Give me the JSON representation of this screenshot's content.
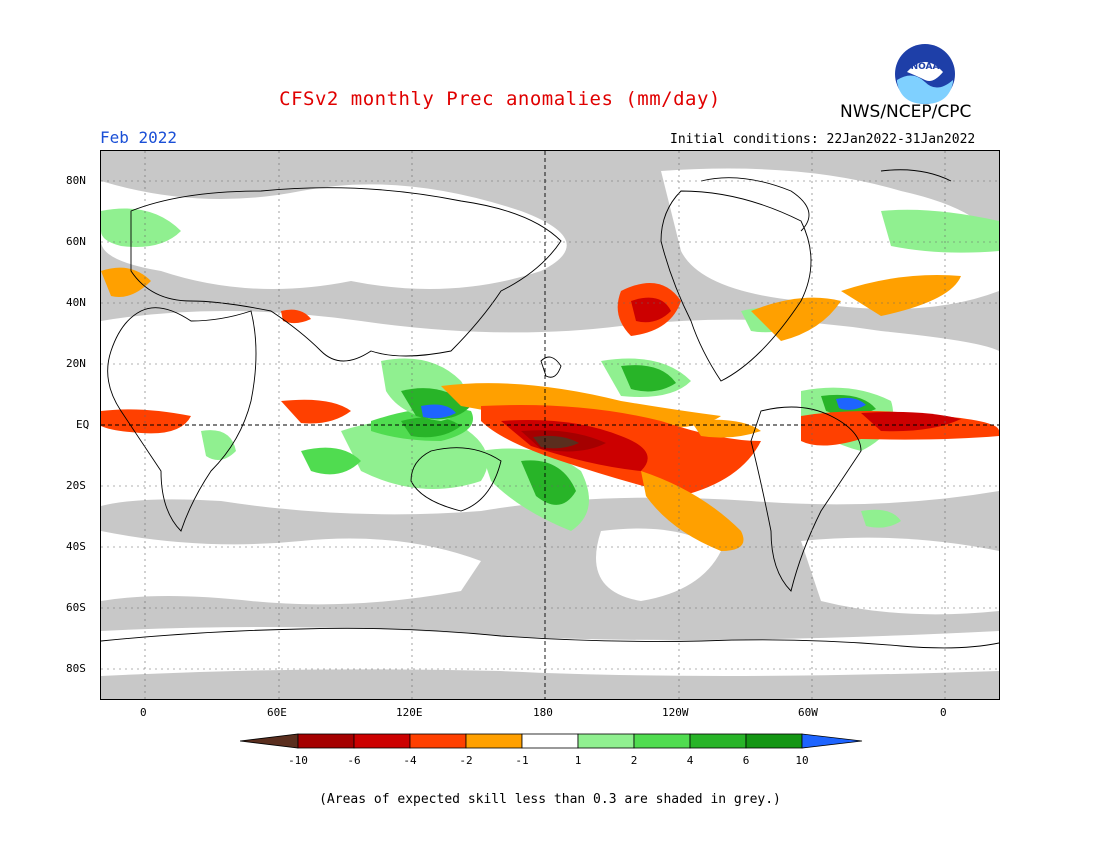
{
  "title": "CFSv2 monthly Prec anomalies (mm/day)",
  "org": "NWS/NCEP/CPC",
  "logo_text": "NOAA",
  "month": "Feb 2022",
  "initial_conditions": "Initial conditions: 22Jan2022-31Jan2022",
  "lat_labels": [
    "80N",
    "60N",
    "40N",
    "20N",
    "EQ",
    "20S",
    "40S",
    "60S",
    "80S"
  ],
  "lon_labels": [
    "0",
    "60E",
    "120E",
    "180",
    "120W",
    "60W",
    "0"
  ],
  "colorbar": {
    "colors": [
      "#5a2e1e",
      "#a50000",
      "#cc0000",
      "#ff4000",
      "#ffa000",
      "#ffffff",
      "#90f090",
      "#50dc50",
      "#28b428",
      "#149614",
      "#1e64ff"
    ],
    "labels": [
      "-10",
      "-6",
      "-4",
      "-2",
      "-1",
      "1",
      "2",
      "4",
      "6",
      "10"
    ]
  },
  "footnote": "(Areas of expected skill less than 0.3 are shaded in grey.)",
  "colors": {
    "grey_mask": "#c8c8c8",
    "title": "#e00000",
    "month": "#1a4fd6"
  }
}
